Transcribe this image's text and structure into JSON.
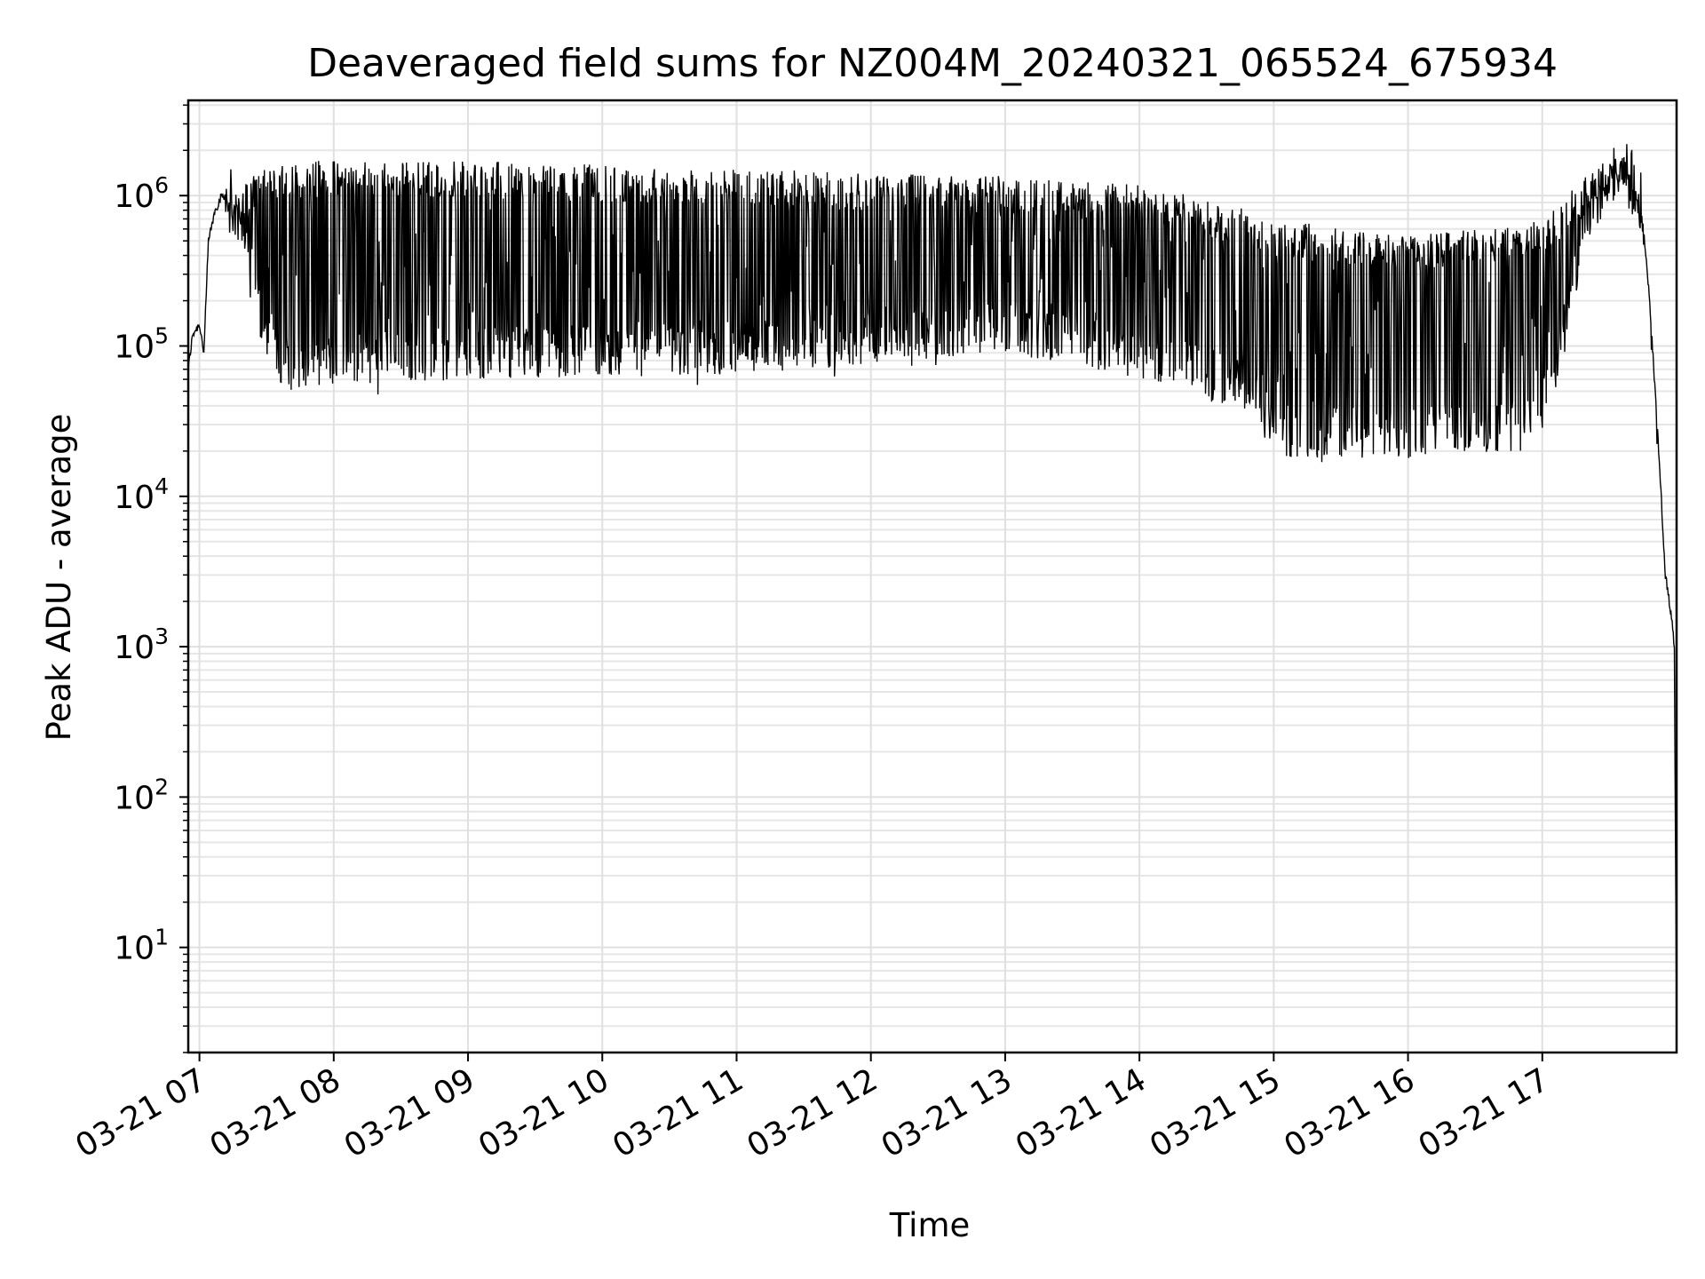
{
  "chart_data": {
    "type": "line",
    "title": "Deaveraged field sums for NZ004M_20240321_065524_675934",
    "xlabel": "Time",
    "ylabel": "Peak ADU - average",
    "y_scale": "log",
    "ylim": [
      2,
      4300000
    ],
    "xlim": [
      "2024-03-21 06:55",
      "2024-03-21 18:00"
    ],
    "y_ticks": [
      {
        "base": "10",
        "exp": "1",
        "value": 10
      },
      {
        "base": "10",
        "exp": "2",
        "value": 100
      },
      {
        "base": "10",
        "exp": "3",
        "value": 1000
      },
      {
        "base": "10",
        "exp": "4",
        "value": 10000
      },
      {
        "base": "10",
        "exp": "5",
        "value": 100000
      },
      {
        "base": "10",
        "exp": "6",
        "value": 1000000
      }
    ],
    "x_ticks": [
      {
        "label": "03-21 07",
        "time": "2024-03-21 07:00"
      },
      {
        "label": "03-21 08",
        "time": "2024-03-21 08:00"
      },
      {
        "label": "03-21 09",
        "time": "2024-03-21 09:00"
      },
      {
        "label": "03-21 10",
        "time": "2024-03-21 10:00"
      },
      {
        "label": "03-21 11",
        "time": "2024-03-21 11:00"
      },
      {
        "label": "03-21 12",
        "time": "2024-03-21 12:00"
      },
      {
        "label": "03-21 13",
        "time": "2024-03-21 13:00"
      },
      {
        "label": "03-21 14",
        "time": "2024-03-21 14:00"
      },
      {
        "label": "03-21 15",
        "time": "2024-03-21 15:00"
      },
      {
        "label": "03-21 16",
        "time": "2024-03-21 16:00"
      },
      {
        "label": "03-21 17",
        "time": "2024-03-21 17:00"
      }
    ],
    "grid": true,
    "line_color": "#000000",
    "series": [
      {
        "values_description_hint": "",
        "x": [
          "2024-03-21 06:55",
          "2024-03-21 06:57",
          "2024-03-21 07:00",
          "2024-03-21 07:02",
          "2024-03-21 07:04",
          "2024-03-21 07:07",
          "2024-03-21 07:10",
          "2024-03-21 07:13",
          "2024-03-21 07:16",
          "2024-03-21 07:20",
          "2024-03-21 07:25",
          "2024-03-21 07:30",
          "2024-03-21 07:35",
          "2024-03-21 07:40",
          "2024-03-21 08:00",
          "2024-03-21 09:00",
          "2024-03-21 10:00",
          "2024-03-21 11:00",
          "2024-03-21 12:00",
          "2024-03-21 13:00",
          "2024-03-21 14:00",
          "2024-03-21 14:50",
          "2024-03-21 15:00",
          "2024-03-21 16:00",
          "2024-03-21 16:55",
          "2024-03-21 17:05",
          "2024-03-21 17:20",
          "2024-03-21 17:35",
          "2024-03-21 17:40",
          "2024-03-21 17:45",
          "2024-03-21 17:48",
          "2024-03-21 17:52",
          "2024-03-21 17:55",
          "2024-03-21 17:58",
          "2024-03-21 17:59",
          "2024-03-21 18:00"
        ],
        "upper": [
          70000,
          120000,
          140000,
          90000,
          500000,
          800000,
          1000000,
          1000000,
          900000,
          1200000,
          1400000,
          1600000,
          1700000,
          1700000,
          1700000,
          1700000,
          1600000,
          1550000,
          1400000,
          1350000,
          1200000,
          800000,
          700000,
          550000,
          650000,
          800000,
          1400000,
          2000000,
          1300000,
          700000,
          200000,
          20000,
          3000,
          1500,
          1000,
          3
        ],
        "lower": [
          70000,
          120000,
          140000,
          90000,
          500000,
          800000,
          1000000,
          800000,
          600000,
          300000,
          150000,
          80000,
          55000,
          50000,
          55000,
          60000,
          62000,
          65000,
          75000,
          90000,
          60000,
          35000,
          18000,
          18000,
          20000,
          40000,
          500000,
          1100000,
          1000000,
          600000,
          200000,
          20000,
          3000,
          1500,
          1000,
          3
        ]
      }
    ]
  }
}
